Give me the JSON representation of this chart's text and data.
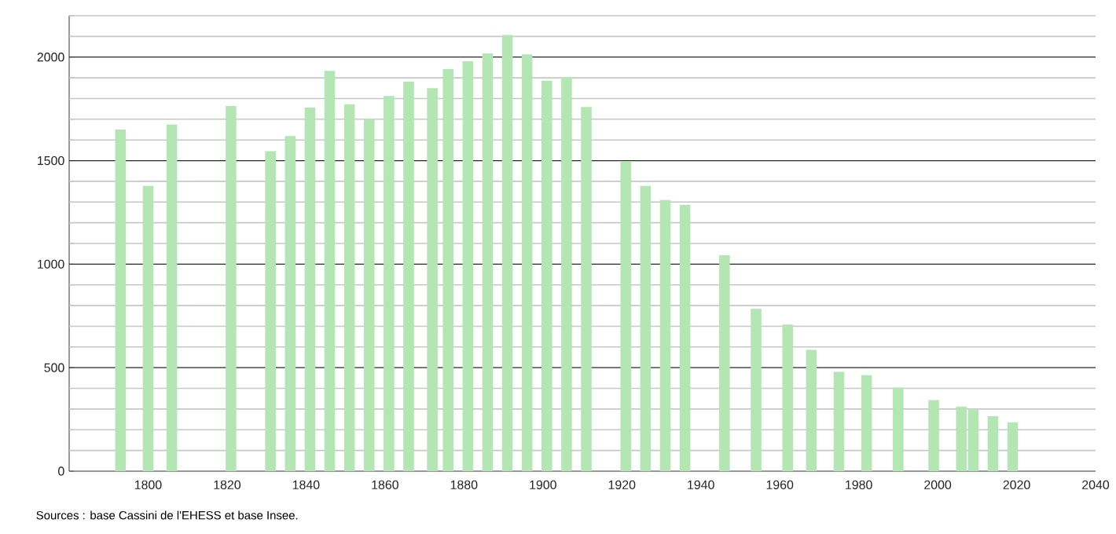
{
  "chart_data": {
    "type": "bar",
    "annotations": [
      "Sources : base Cassini de l'EHESS et base Insee."
    ],
    "x": [
      1793,
      1800,
      1806,
      1821,
      1831,
      1836,
      1841,
      1846,
      1851,
      1856,
      1861,
      1866,
      1872,
      1876,
      1881,
      1886,
      1891,
      1896,
      1901,
      1906,
      1911,
      1921,
      1926,
      1931,
      1936,
      1946,
      1954,
      1962,
      1968,
      1975,
      1982,
      1990,
      1999,
      2006,
      2009,
      2014,
      2019
    ],
    "values": [
      1650,
      1378,
      1675,
      1764,
      1546,
      1619,
      1756,
      1934,
      1772,
      1703,
      1812,
      1881,
      1850,
      1942,
      1980,
      2018,
      2107,
      2013,
      1886,
      1904,
      1759,
      1497,
      1378,
      1310,
      1287,
      1043,
      784,
      708,
      586,
      480,
      464,
      404,
      343,
      312,
      297,
      266,
      236
    ],
    "color": "#b3e6b3",
    "xlim": [
      1780,
      2040
    ],
    "xticks": [
      1800,
      1820,
      1840,
      1860,
      1880,
      1900,
      1920,
      1940,
      1960,
      1980,
      2000,
      2020,
      2040
    ],
    "ylim": [
      0,
      2200
    ],
    "yticks": [
      0,
      {
        "value": 100,
        "label": null
      },
      {
        "value": 200,
        "label": null
      },
      {
        "value": 300,
        "label": null
      },
      {
        "value": 400,
        "label": null
      },
      500,
      {
        "value": 600,
        "label": null
      },
      {
        "value": 700,
        "label": null
      },
      {
        "value": 800,
        "label": null
      },
      {
        "value": 900,
        "label": null
      },
      1000,
      {
        "value": 1100,
        "label": null
      },
      {
        "value": 1200,
        "label": null
      },
      {
        "value": 1300,
        "label": null
      },
      {
        "value": 1400,
        "label": null
      },
      1500,
      {
        "value": 1600,
        "label": null
      },
      {
        "value": 1700,
        "label": null
      },
      {
        "value": 1800,
        "label": null
      },
      {
        "value": 1900,
        "label": null
      },
      2000,
      {
        "value": 2100,
        "label": null
      },
      {
        "value": 2200,
        "label": null
      }
    ],
    "grid": "y"
  }
}
